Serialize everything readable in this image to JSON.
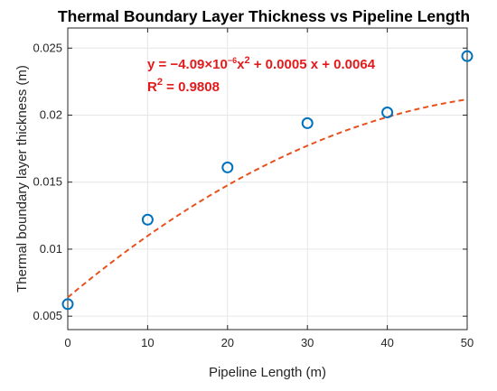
{
  "chart_data": {
    "type": "scatter",
    "title": "Thermal Boundary Layer Thickness vs Pipeline Length",
    "xlabel": "Pipeline Length (m)",
    "ylabel": "Thermal boundary layer thickness (m)",
    "xlim": [
      0,
      50
    ],
    "ylim": [
      0.004,
      0.0265
    ],
    "xticks": [
      0,
      10,
      20,
      30,
      40,
      50
    ],
    "xtick_labels": [
      "0",
      "10",
      "20",
      "30",
      "40",
      "50"
    ],
    "yticks": [
      0.005,
      0.01,
      0.015,
      0.02,
      0.025
    ],
    "ytick_labels": [
      "0.005",
      "0.01",
      "0.015",
      "0.02",
      "0.025"
    ],
    "grid": true,
    "series": [
      {
        "kind": "scatter",
        "marker": "open-circle",
        "color": "#0072bd",
        "x": [
          0,
          10,
          20,
          30,
          40,
          50
        ],
        "y": [
          0.0059,
          0.0122,
          0.0161,
          0.0194,
          0.0202,
          0.0244
        ]
      },
      {
        "kind": "fit-line",
        "style": "dashed",
        "color": "#e8501c",
        "coefficients": {
          "a": -4.09e-06,
          "b": 0.0005,
          "c": 0.0064
        }
      }
    ],
    "annotations": {
      "equation": {
        "prefix": "y = ",
        "coef": "−4.09×10",
        "exp": "−6",
        "mid": "x",
        "x_exp": "2",
        "rest": " + 0.0005 x + 0.0064"
      },
      "r2": {
        "label": "R",
        "exp": "2",
        "value": " = 0.9808"
      }
    },
    "annotation_color": "#e31a1c"
  }
}
